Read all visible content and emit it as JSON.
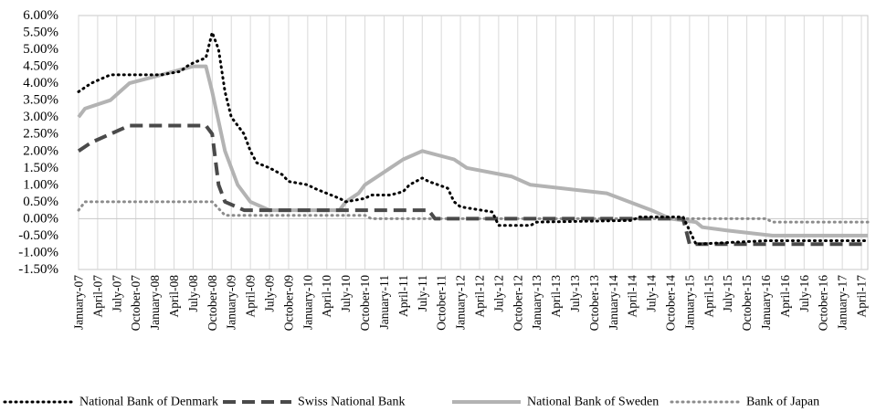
{
  "chart_data": {
    "type": "line",
    "title": "",
    "xlabel": "",
    "ylabel": "",
    "ylim": [
      -0.015,
      0.06
    ],
    "yticks": [
      0.06,
      0.055,
      0.05,
      0.045,
      0.04,
      0.035,
      0.03,
      0.025,
      0.02,
      0.015,
      0.01,
      0.005,
      0.0,
      -0.005,
      -0.01,
      -0.015
    ],
    "ytick_labels": [
      "6.00%",
      "5.50%",
      "5.00%",
      "4.50%",
      "4.00%",
      "3.50%",
      "3.00%",
      "2.50%",
      "2.00%",
      "1.50%",
      "1.00%",
      "0.50%",
      "0.00%",
      "-0.50%",
      "-1.00%",
      "-1.50%"
    ],
    "xlim": [
      "2007-01",
      "2017-05"
    ],
    "xtick_labels": [
      "January-07",
      "April-07",
      "July-07",
      "October-07",
      "January-08",
      "April-08",
      "July-08",
      "October-08",
      "January-09",
      "April-09",
      "July-09",
      "October-09",
      "January-10",
      "April-10",
      "July-10",
      "October-10",
      "January-11",
      "April-11",
      "July-11",
      "October-11",
      "January-12",
      "April-12",
      "July-12",
      "October-12",
      "January-13",
      "April-13",
      "July-13",
      "October-13",
      "January-14",
      "April-14",
      "July-14",
      "October-14",
      "January-15",
      "April-15",
      "July-15",
      "October-15",
      "January-16",
      "April-16",
      "July-16",
      "October-16",
      "January-17",
      "April-17"
    ],
    "xtick_dates": [
      "2007-01",
      "2007-04",
      "2007-07",
      "2007-10",
      "2008-01",
      "2008-04",
      "2008-07",
      "2008-10",
      "2009-01",
      "2009-04",
      "2009-07",
      "2009-10",
      "2010-01",
      "2010-04",
      "2010-07",
      "2010-10",
      "2011-01",
      "2011-04",
      "2011-07",
      "2011-10",
      "2012-01",
      "2012-04",
      "2012-07",
      "2012-10",
      "2013-01",
      "2013-04",
      "2013-07",
      "2013-10",
      "2014-01",
      "2014-04",
      "2014-07",
      "2014-10",
      "2015-01",
      "2015-04",
      "2015-07",
      "2015-10",
      "2016-01",
      "2016-04",
      "2016-07",
      "2016-10",
      "2017-01",
      "2017-04"
    ],
    "grid": "vertical",
    "legend": "bottom",
    "series": [
      {
        "name": "National Bank of Denmark",
        "color": "#000000",
        "style": "dotted",
        "points": [
          [
            "2007-01",
            0.0375
          ],
          [
            "2007-03",
            0.04
          ],
          [
            "2007-06",
            0.0425
          ],
          [
            "2007-12",
            0.0425
          ],
          [
            "2008-02",
            0.0425
          ],
          [
            "2008-05",
            0.0435
          ],
          [
            "2008-06",
            0.045
          ],
          [
            "2008-07",
            0.046
          ],
          [
            "2008-09",
            0.0475
          ],
          [
            "2008-10",
            0.055
          ],
          [
            "2008-11",
            0.05
          ],
          [
            "2008-12",
            0.0375
          ],
          [
            "2009-01",
            0.03
          ],
          [
            "2009-03",
            0.025
          ],
          [
            "2009-04",
            0.02
          ],
          [
            "2009-05",
            0.0165
          ],
          [
            "2009-07",
            0.015
          ],
          [
            "2009-09",
            0.013
          ],
          [
            "2009-10",
            0.011
          ],
          [
            "2010-01",
            0.01
          ],
          [
            "2010-02",
            0.009
          ],
          [
            "2010-04",
            0.0075
          ],
          [
            "2010-06",
            0.006
          ],
          [
            "2010-07",
            0.005
          ],
          [
            "2010-10",
            0.006
          ],
          [
            "2010-11",
            0.007
          ],
          [
            "2011-02",
            0.007
          ],
          [
            "2011-04",
            0.008
          ],
          [
            "2011-05",
            0.01
          ],
          [
            "2011-07",
            0.012
          ],
          [
            "2011-08",
            0.011
          ],
          [
            "2011-11",
            0.009
          ],
          [
            "2011-12",
            0.005
          ],
          [
            "2012-01",
            0.0035
          ],
          [
            "2012-06",
            0.002
          ],
          [
            "2012-07",
            -0.002
          ],
          [
            "2012-12",
            -0.002
          ],
          [
            "2013-01",
            -0.001
          ],
          [
            "2014-04",
            -0.0005
          ],
          [
            "2014-05",
            0.0005
          ],
          [
            "2014-12",
            0.0005
          ],
          [
            "2015-01",
            -0.0035
          ],
          [
            "2015-02",
            -0.0075
          ],
          [
            "2016-01",
            -0.0065
          ],
          [
            "2017-05",
            -0.0065
          ]
        ]
      },
      {
        "name": "Swiss National Bank",
        "color": "#4a4a4a",
        "style": "dashed",
        "points": [
          [
            "2007-01",
            0.02
          ],
          [
            "2007-03",
            0.0225
          ],
          [
            "2007-06",
            0.025
          ],
          [
            "2007-09",
            0.0275
          ],
          [
            "2008-09",
            0.0275
          ],
          [
            "2008-10",
            0.025
          ],
          [
            "2008-11",
            0.01
          ],
          [
            "2008-12",
            0.005
          ],
          [
            "2009-03",
            0.0025
          ],
          [
            "2011-08",
            0.0025
          ],
          [
            "2011-09",
            0.0
          ],
          [
            "2014-12",
            0.0
          ],
          [
            "2015-01",
            -0.0075
          ],
          [
            "2017-05",
            -0.0075
          ]
        ]
      },
      {
        "name": "National Bank of Sweden",
        "color": "#b3b3b3",
        "style": "solid",
        "points": [
          [
            "2007-01",
            0.03
          ],
          [
            "2007-02",
            0.0325
          ],
          [
            "2007-06",
            0.035
          ],
          [
            "2007-09",
            0.04
          ],
          [
            "2008-02",
            0.0425
          ],
          [
            "2008-07",
            0.045
          ],
          [
            "2008-09",
            0.045
          ],
          [
            "2008-10",
            0.0375
          ],
          [
            "2008-12",
            0.02
          ],
          [
            "2009-02",
            0.01
          ],
          [
            "2009-04",
            0.005
          ],
          [
            "2009-07",
            0.0025
          ],
          [
            "2010-06",
            0.0025
          ],
          [
            "2010-07",
            0.005
          ],
          [
            "2010-09",
            0.0075
          ],
          [
            "2010-10",
            0.01
          ],
          [
            "2010-12",
            0.0125
          ],
          [
            "2011-02",
            0.015
          ],
          [
            "2011-04",
            0.0175
          ],
          [
            "2011-07",
            0.02
          ],
          [
            "2011-12",
            0.0175
          ],
          [
            "2012-02",
            0.015
          ],
          [
            "2012-09",
            0.0125
          ],
          [
            "2012-12",
            0.01
          ],
          [
            "2013-12",
            0.0075
          ],
          [
            "2014-07",
            0.0025
          ],
          [
            "2014-10",
            0.0
          ],
          [
            "2015-02",
            -0.001
          ],
          [
            "2015-03",
            -0.0025
          ],
          [
            "2015-07",
            -0.0035
          ],
          [
            "2016-02",
            -0.005
          ],
          [
            "2017-05",
            -0.005
          ]
        ]
      },
      {
        "name": "Bank of Japan",
        "color": "#8c8c8c",
        "style": "dotted",
        "points": [
          [
            "2007-01",
            0.0025
          ],
          [
            "2007-02",
            0.005
          ],
          [
            "2008-10",
            0.005
          ],
          [
            "2008-11",
            0.003
          ],
          [
            "2008-12",
            0.001
          ],
          [
            "2010-10",
            0.001
          ],
          [
            "2010-11",
            0.0
          ],
          [
            "2016-01",
            0.0
          ],
          [
            "2016-02",
            -0.001
          ],
          [
            "2017-05",
            -0.001
          ]
        ]
      }
    ]
  }
}
